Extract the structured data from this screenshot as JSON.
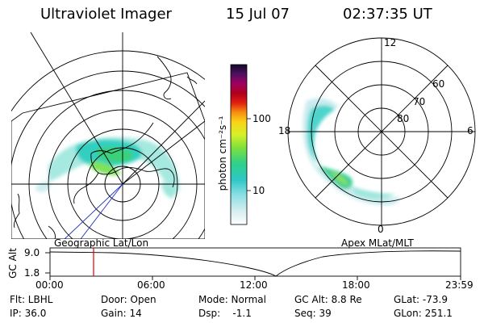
{
  "header": {
    "instrument": "Ultraviolet Imager",
    "date": "15 Jul 07",
    "time": "02:37:35 UT"
  },
  "colorbar": {
    "unit_label": "photon cm⁻²s⁻¹",
    "ticks": [
      "100",
      "10"
    ]
  },
  "left_panel": {
    "caption": "Geographic Lat/Lon"
  },
  "right_panel": {
    "caption": "Apex MLat/MLT",
    "mlt_labels": {
      "top": "12",
      "left": "18",
      "right": "6",
      "bottom": "0"
    },
    "mlat_labels": [
      "60",
      "70",
      "80"
    ]
  },
  "timeline": {
    "ylabel": "GC Alt",
    "y_ticks": [
      "9.0",
      "1.8"
    ],
    "x_ticks": [
      "00:00",
      "06:00",
      "12:00",
      "18:00",
      "23:59"
    ]
  },
  "info": {
    "filter": "Flt: LBHL",
    "door": "Door: Open",
    "mode": "Mode: Normal",
    "gc_alt": "GC Alt: 8.8 Re",
    "glat": "GLat: -73.9",
    "ip": "IP: 36.0",
    "gain": "Gain: 14",
    "dsp": "Dsp:    -1.1",
    "seq": "Seq: 39",
    "glon": "GLon: 251.1"
  },
  "colors": {
    "frame": "#000000",
    "time_marker": "#e00000"
  }
}
